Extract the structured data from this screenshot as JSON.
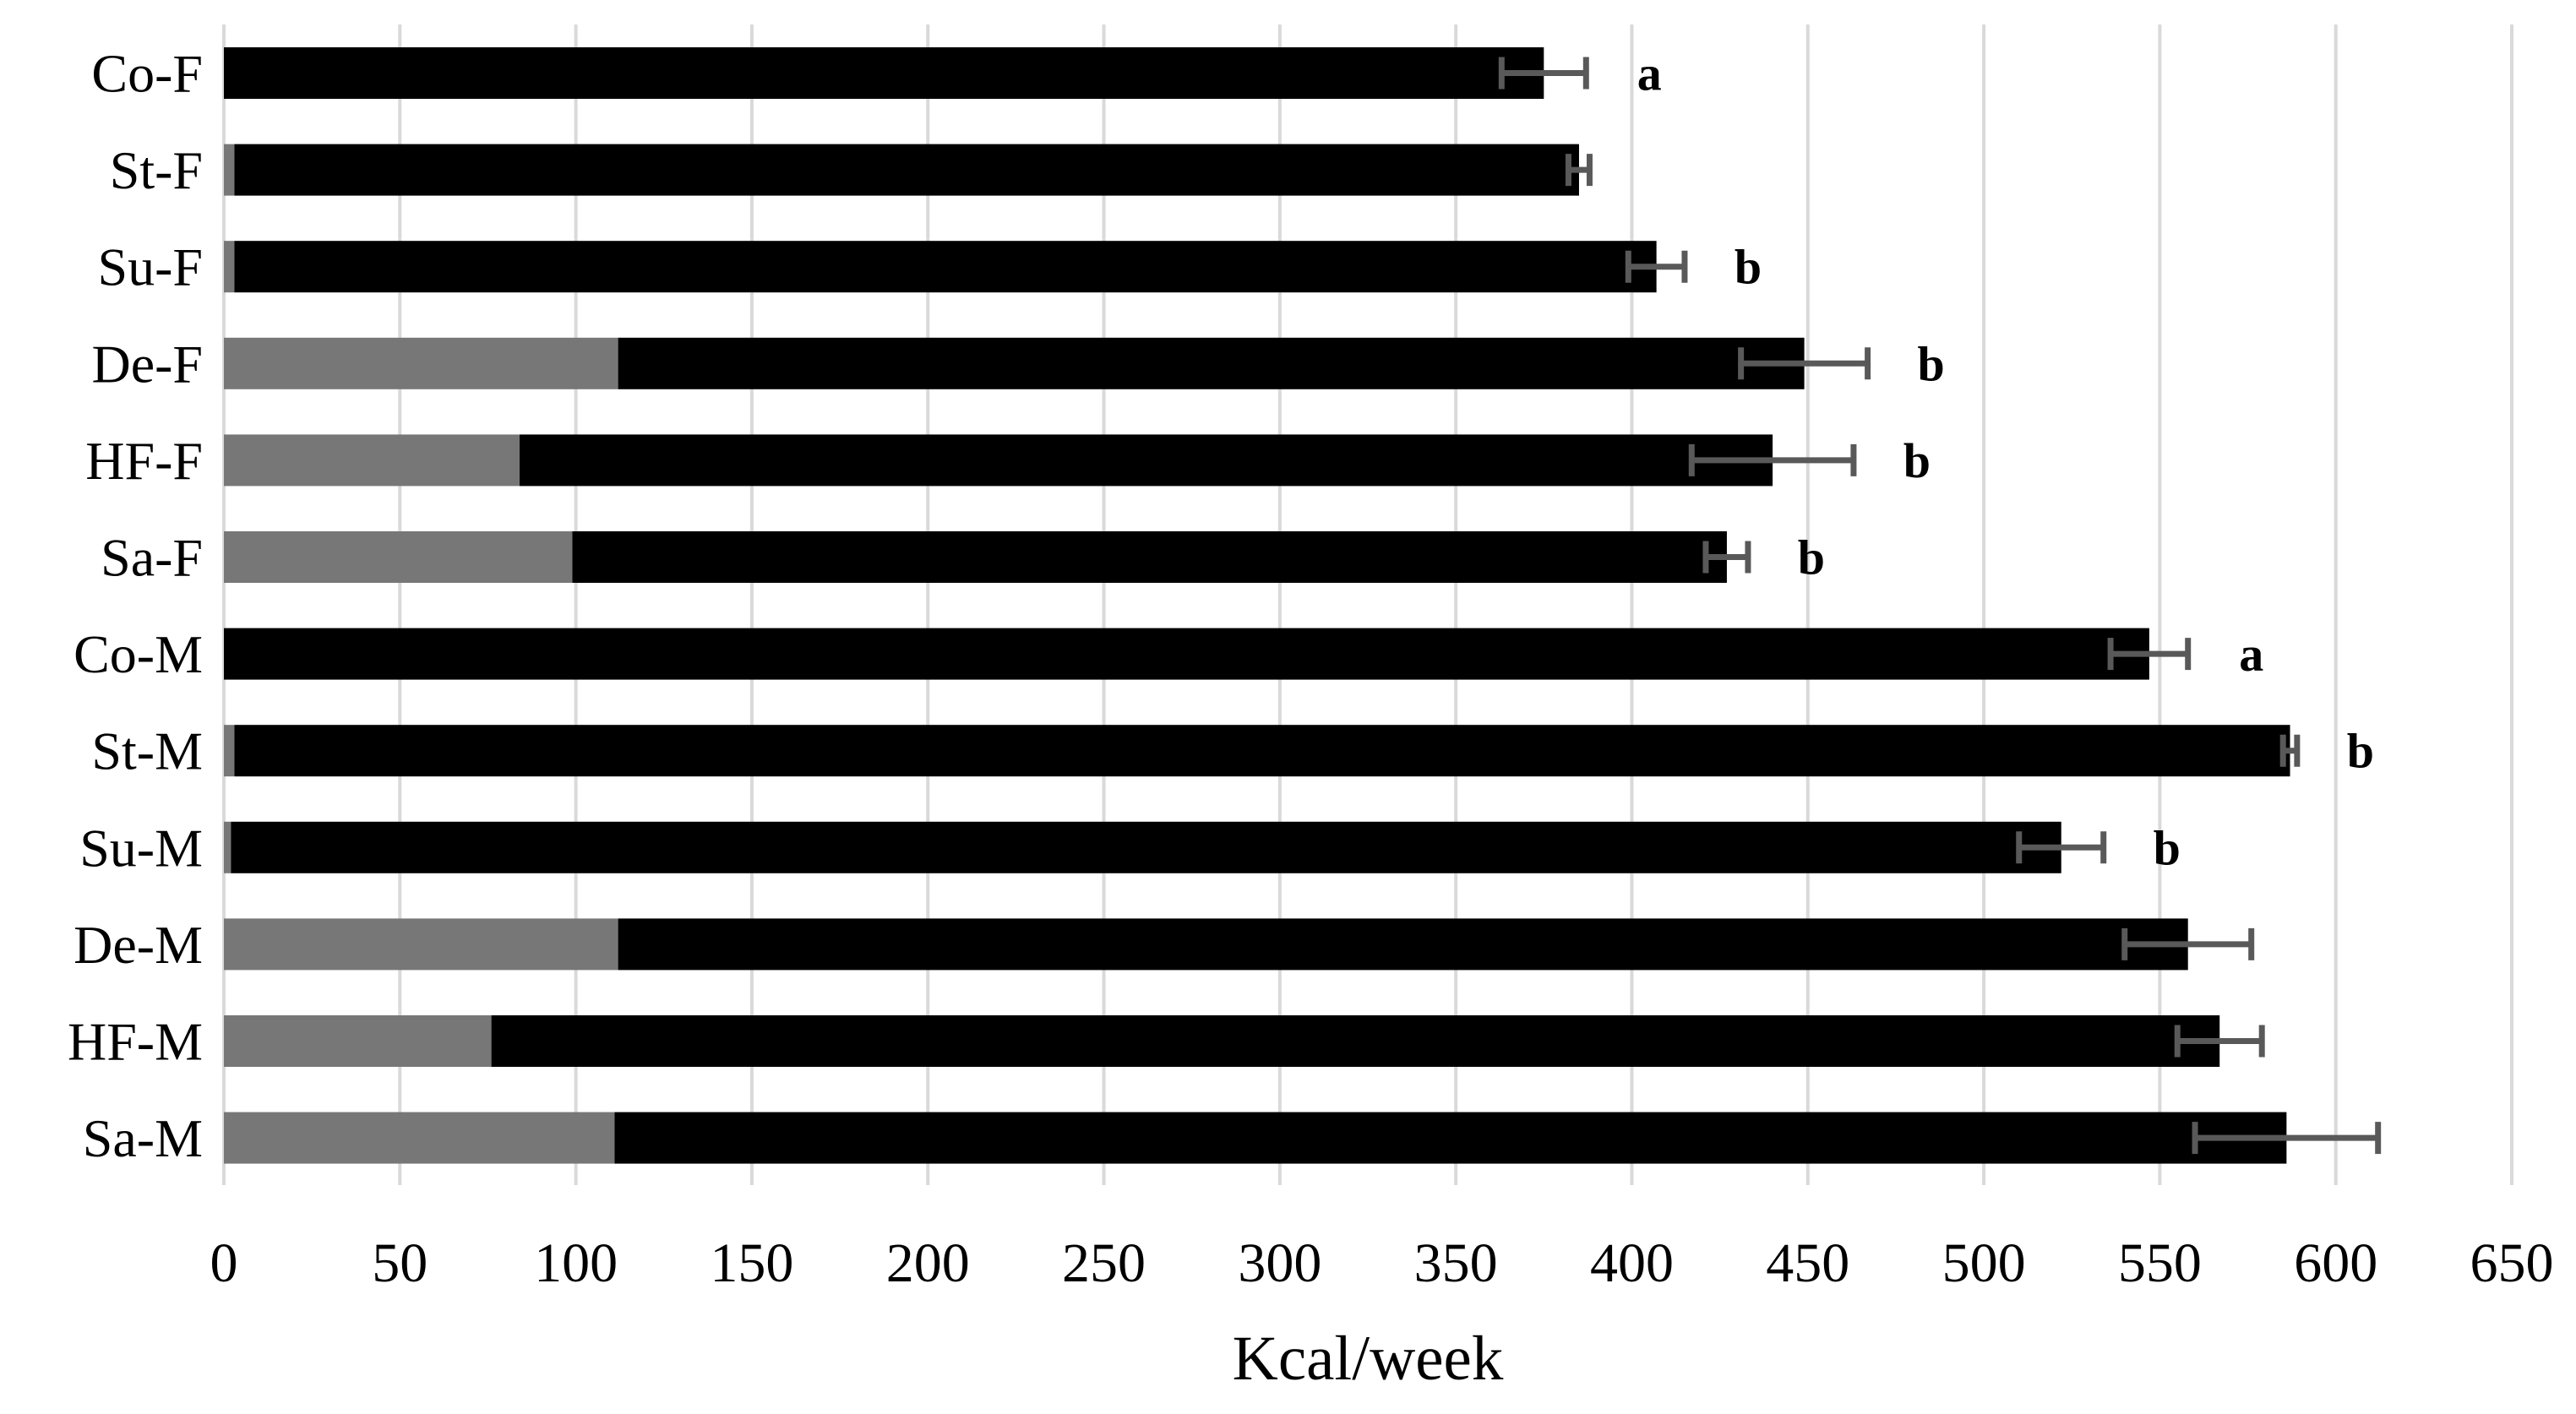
{
  "chart_data": {
    "type": "bar",
    "orientation": "horizontal",
    "stacked": true,
    "title": "",
    "xlabel": "Kcal/week",
    "xlim": [
      0,
      650
    ],
    "xticks": [
      0,
      50,
      100,
      150,
      200,
      250,
      300,
      350,
      400,
      450,
      500,
      550,
      600,
      650
    ],
    "grid": true,
    "legend": "none",
    "categories": [
      "Co-F",
      "St-F",
      "Su-F",
      "De-F",
      "HF-F",
      "Sa-F",
      "Co-M",
      "St-M",
      "Su-M",
      "De-M",
      "HF-M",
      "Sa-M"
    ],
    "series": [
      {
        "name": "segment-gray",
        "color": "#777777",
        "values": [
          0,
          3,
          3,
          112,
          84,
          99,
          0,
          3,
          2,
          112,
          76,
          111
        ]
      },
      {
        "name": "segment-black",
        "color": "#000000",
        "values": [
          375,
          382,
          404,
          337,
          356,
          328,
          547,
          584,
          520,
          446,
          491,
          475
        ]
      }
    ],
    "totals": [
      375,
      385,
      407,
      449,
      440,
      427,
      547,
      587,
      522,
      558,
      567,
      586
    ],
    "error_bars": [
      12,
      3,
      8,
      18,
      23,
      6,
      11,
      2,
      12,
      18,
      12,
      26
    ],
    "sig_letters": [
      "a",
      "",
      "b",
      "b",
      "b",
      "b",
      "a",
      "b",
      "b",
      "",
      "",
      ""
    ],
    "colors": {
      "error_bar": "#595959",
      "gridline": "#d9d9d9",
      "letter": "#000000",
      "tick_text": "#000000"
    }
  }
}
